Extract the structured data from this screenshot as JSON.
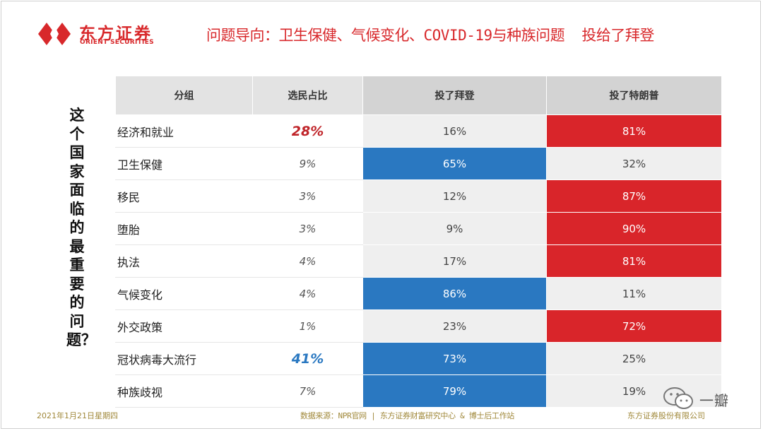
{
  "header": {
    "logo_cn": "东方证券",
    "logo_en": "ORIENT SECURITIES",
    "title": "问题导向：卫生保健、气候变化、COVID-19与种族问题  投给了拜登"
  },
  "side_question": "这个国家面临的最重要的问题？",
  "table": {
    "columns": [
      "分组",
      "选民占比",
      "投了拜登",
      "投了特朗普"
    ],
    "rows": [
      {
        "category": "经济和就业",
        "share": "28%",
        "biden": "16%",
        "trump": "81%",
        "winner": "trump",
        "emphasis": "red"
      },
      {
        "category": "卫生保健",
        "share": "9%",
        "biden": "65%",
        "trump": "32%",
        "winner": "biden",
        "emphasis": ""
      },
      {
        "category": "移民",
        "share": "3%",
        "biden": "12%",
        "trump": "87%",
        "winner": "trump",
        "emphasis": ""
      },
      {
        "category": "堕胎",
        "share": "3%",
        "biden": "9%",
        "trump": "90%",
        "winner": "trump",
        "emphasis": ""
      },
      {
        "category": "执法",
        "share": "4%",
        "biden": "17%",
        "trump": "81%",
        "winner": "trump",
        "emphasis": ""
      },
      {
        "category": "气候变化",
        "share": "4%",
        "biden": "86%",
        "trump": "11%",
        "winner": "biden",
        "emphasis": ""
      },
      {
        "category": "外交政策",
        "share": "1%",
        "biden": "23%",
        "trump": "72%",
        "winner": "trump",
        "emphasis": ""
      },
      {
        "category": "冠状病毒大流行",
        "share": "41%",
        "biden": "73%",
        "trump": "25%",
        "winner": "biden",
        "emphasis": "blue"
      },
      {
        "category": "种族歧视",
        "share": "7%",
        "biden": "79%",
        "trump": "19%",
        "winner": "biden",
        "emphasis": ""
      }
    ]
  },
  "footer": {
    "date": "2021年1月21日星期四",
    "source": "数据来源：NPR官网 | 东方证券财富研究中心 & 博士后工作站",
    "company": "东方证券股份有限公司"
  },
  "watermark": "一瓣",
  "colors": {
    "brand_red": "#d8282b",
    "trump_red": "#d9252a",
    "biden_blue": "#2a78c1"
  }
}
